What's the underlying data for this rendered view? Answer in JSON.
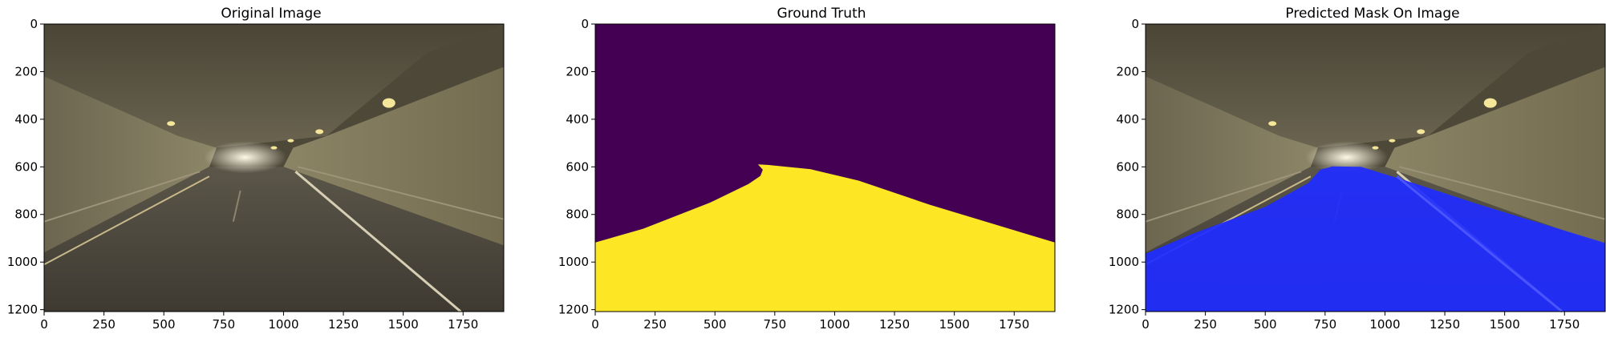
{
  "chart_data": [
    {
      "type": "image",
      "title": "Original Image",
      "xlim": [
        0,
        1920
      ],
      "ylim": [
        1208,
        0
      ],
      "xticks": [
        0,
        250,
        500,
        750,
        1000,
        1250,
        1500,
        1750
      ],
      "yticks": [
        0,
        200,
        400,
        600,
        800,
        1000,
        1200
      ],
      "content": "tunnel road photo"
    },
    {
      "type": "image",
      "title": "Ground Truth",
      "xlim": [
        0,
        1920
      ],
      "ylim": [
        1208,
        0
      ],
      "xticks": [
        0,
        250,
        500,
        750,
        1000,
        1250,
        1500,
        1750
      ],
      "yticks": [
        0,
        200,
        400,
        600,
        800,
        1000,
        1200
      ],
      "content": "binary segmentation mask",
      "colors": {
        "background": "#440154",
        "road": "#fde725"
      },
      "mask_outline": [
        [
          0,
          918
        ],
        [
          200,
          860
        ],
        [
          480,
          750
        ],
        [
          640,
          672
        ],
        [
          690,
          638
        ],
        [
          700,
          612
        ],
        [
          680,
          590
        ],
        [
          720,
          592
        ],
        [
          900,
          610
        ],
        [
          1100,
          658
        ],
        [
          1400,
          760
        ],
        [
          1920,
          918
        ],
        [
          1920,
          1208
        ],
        [
          0,
          1208
        ]
      ]
    },
    {
      "type": "image",
      "title": "Predicted Mask On Image",
      "xlim": [
        0,
        1920
      ],
      "ylim": [
        1208,
        0
      ],
      "xticks": [
        0,
        250,
        500,
        750,
        1000,
        1250,
        1500,
        1750
      ],
      "yticks": [
        0,
        200,
        400,
        600,
        800,
        1000,
        1200
      ],
      "content": "tunnel road photo with predicted mask overlay",
      "colors": {
        "overlay": "#1f2cff"
      },
      "mask_outline": [
        [
          0,
          965
        ],
        [
          200,
          880
        ],
        [
          500,
          768
        ],
        [
          680,
          668
        ],
        [
          730,
          612
        ],
        [
          780,
          598
        ],
        [
          900,
          600
        ],
        [
          1080,
          655
        ],
        [
          1400,
          760
        ],
        [
          1920,
          920
        ],
        [
          1920,
          1208
        ],
        [
          0,
          1208
        ]
      ]
    }
  ]
}
